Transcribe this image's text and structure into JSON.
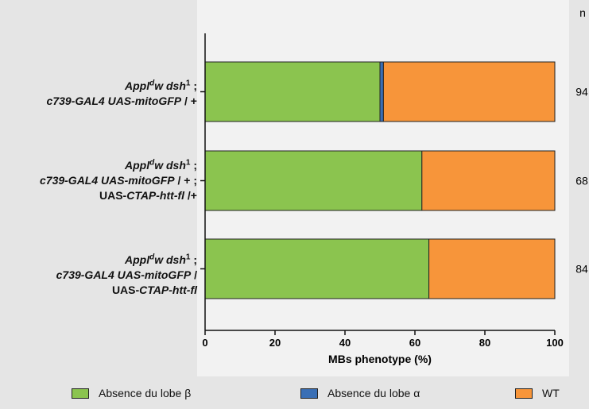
{
  "chart_data": {
    "type": "bar",
    "orientation": "horizontal",
    "stacked": true,
    "xlabel": "MBs phenotype (%)",
    "xlim": [
      0,
      100
    ],
    "xticks": [
      "0",
      "20",
      "40",
      "60",
      "80",
      "100"
    ],
    "n_header": "n",
    "categories": [
      {
        "l1a": "Appl",
        "l1sup": "d",
        "l1b": "w dsh",
        "l1sup2": "1",
        "l1c": " ;",
        "l2a": "c739-GAL4 UAS-mitoGFP",
        "l2b": " / +",
        "l3a": "",
        "l3b": "",
        "l3c": "",
        "n": "94"
      },
      {
        "l1a": "Appl",
        "l1sup": "d",
        "l1b": "w dsh",
        "l1sup2": "1",
        "l1c": " ;",
        "l2a": "c739-GAL4 UAS-mitoGFP",
        "l2b": " / + ;",
        "l3a": "UAS-",
        "l3b": "CTAP-htt-fl",
        "l3c": " /+",
        "n": "68"
      },
      {
        "l1a": "Appl",
        "l1sup": "d",
        "l1b": "w dsh",
        "l1sup2": "1",
        "l1c": " ;",
        "l2a": "c739-GAL4 UAS-mitoGFP",
        "l2b": " /",
        "l3a": "UAS-",
        "l3b": "CTAP-htt-fl",
        "l3c": "",
        "n": "84"
      }
    ],
    "series": [
      {
        "name": "Absence du lobe β",
        "color": "#8bc44f",
        "values": [
          50,
          62,
          64
        ]
      },
      {
        "name": "Absence du lobe α",
        "color": "#3a6fb5",
        "values": [
          1,
          0,
          0
        ]
      },
      {
        "name": "WT",
        "color": "#f7953a",
        "values": [
          49,
          38,
          36
        ]
      }
    ],
    "legend_position": "bottom"
  }
}
